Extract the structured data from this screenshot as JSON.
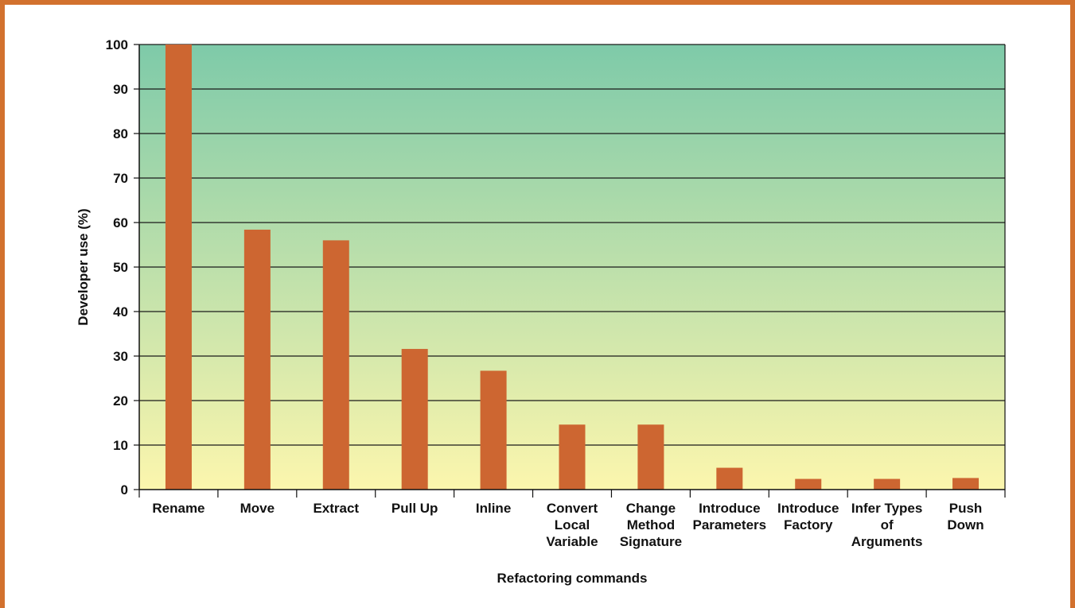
{
  "chart_data": {
    "type": "bar",
    "title": "",
    "xlabel": "Refactoring commands",
    "ylabel": "Developer use (%)",
    "ylim": [
      0,
      100
    ],
    "yticks": [
      0,
      10,
      20,
      30,
      40,
      50,
      60,
      70,
      80,
      90,
      100
    ],
    "grid": true,
    "categories": [
      [
        "Rename"
      ],
      [
        "Move"
      ],
      [
        "Extract"
      ],
      [
        "Pull Up"
      ],
      [
        "Inline"
      ],
      [
        "Convert",
        "Local",
        "Variable"
      ],
      [
        "Change",
        "Method",
        "Signature"
      ],
      [
        "Introduce",
        "Parameters"
      ],
      [
        "Introduce",
        "Factory"
      ],
      [
        "Infer Types",
        "of",
        "Arguments"
      ],
      [
        "Push",
        "Down"
      ]
    ],
    "values": [
      100,
      58.4,
      56,
      31.6,
      26.7,
      14.6,
      14.6,
      4.9,
      2.4,
      2.4,
      2.6
    ],
    "colors": {
      "bar": "#cd6631",
      "frame": "#d2712e",
      "gradient_top": "#7ecaa9",
      "gradient_bottom": "#fcf6ad",
      "grid": "#1a1a1a"
    }
  }
}
